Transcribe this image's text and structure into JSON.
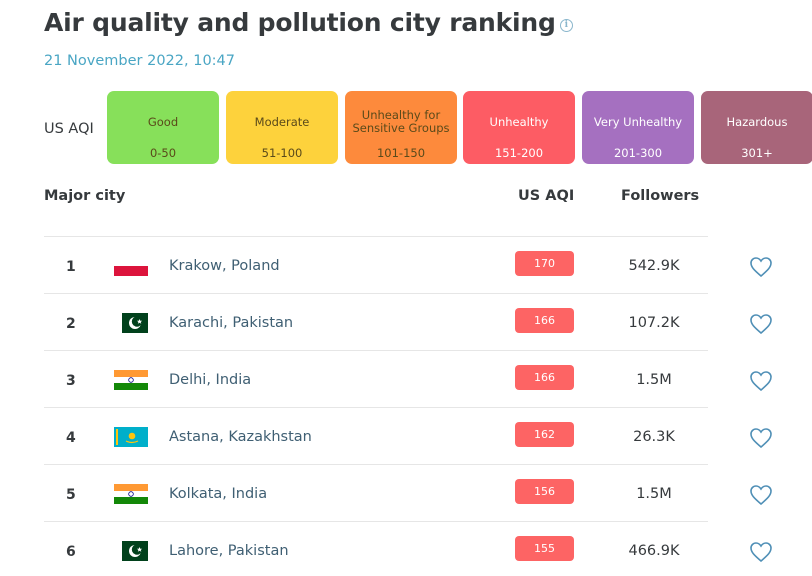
{
  "header": {
    "title": "Air quality and pollution city ranking",
    "info_icon": "info-icon",
    "timestamp": "21 November 2022, 10:47"
  },
  "legend": {
    "label": "US AQI",
    "items": [
      {
        "name": "Good",
        "range": "0-50",
        "color": "#87e05a"
      },
      {
        "name": "Moderate",
        "range": "51-100",
        "color": "#fdd23c"
      },
      {
        "name": "Unhealthy for Sensitive Groups",
        "range": "101-150",
        "color": "#fd8a3c"
      },
      {
        "name": "Unhealthy",
        "range": "151-200",
        "color": "#fd5c64"
      },
      {
        "name": "Very Unhealthy",
        "range": "201-300",
        "color": "#a570c0"
      },
      {
        "name": "Hazardous",
        "range": "301+",
        "color": "#a8657a"
      }
    ]
  },
  "table": {
    "columns": {
      "city": "Major city",
      "aqi": "US AQI",
      "followers": "Followers"
    },
    "rows": [
      {
        "rank": "1",
        "flag": "poland-flag",
        "city": "Krakow, Poland",
        "aqi": "170",
        "followers": "542.9K",
        "follow_icon": "heart-icon"
      },
      {
        "rank": "2",
        "flag": "pakistan-flag",
        "city": "Karachi, Pakistan",
        "aqi": "166",
        "followers": "107.2K",
        "follow_icon": "heart-icon"
      },
      {
        "rank": "3",
        "flag": "india-flag",
        "city": "Delhi, India",
        "aqi": "166",
        "followers": "1.5M",
        "follow_icon": "heart-icon"
      },
      {
        "rank": "4",
        "flag": "kazakhstan-flag",
        "city": "Astana, Kazakhstan",
        "aqi": "162",
        "followers": "26.3K",
        "follow_icon": "heart-icon"
      },
      {
        "rank": "5",
        "flag": "india-flag",
        "city": "Kolkata, India",
        "aqi": "156",
        "followers": "1.5M",
        "follow_icon": "heart-icon"
      },
      {
        "rank": "6",
        "flag": "pakistan-flag",
        "city": "Lahore, Pakistan",
        "aqi": "155",
        "followers": "466.9K",
        "follow_icon": "heart-icon"
      }
    ],
    "badge_color": "#fd6464"
  }
}
